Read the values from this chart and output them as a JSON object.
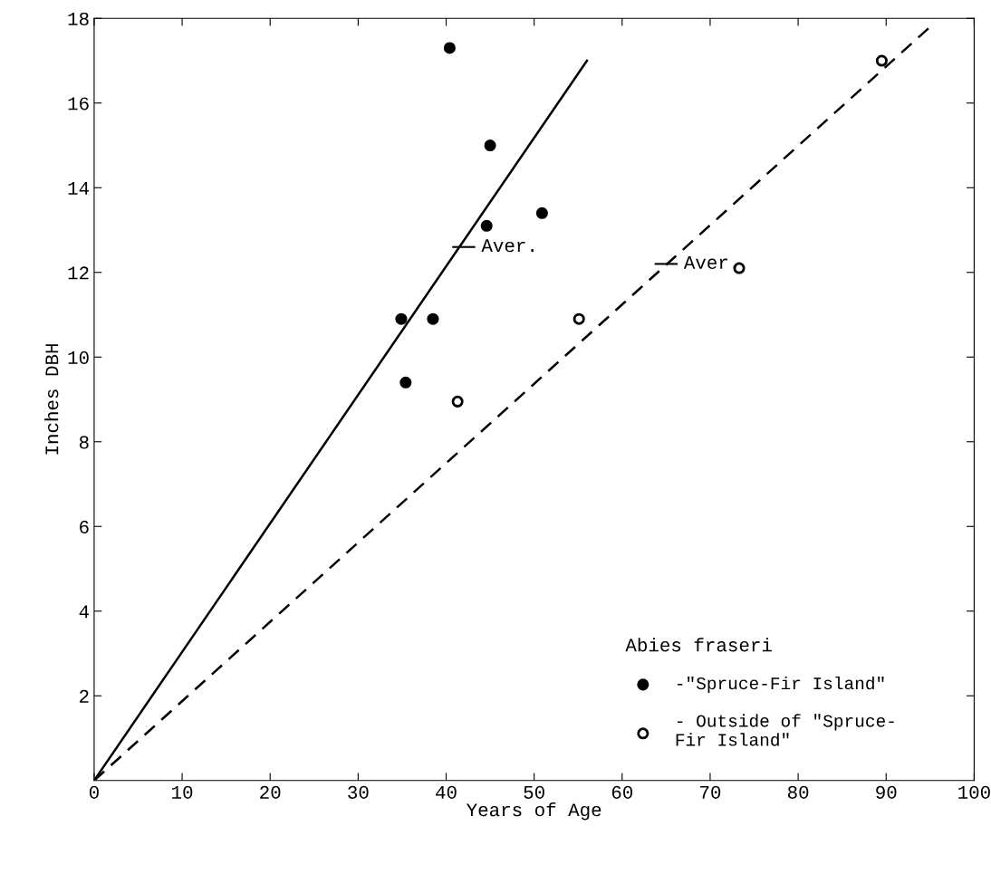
{
  "chart_data": {
    "type": "scatter",
    "xlabel": "Years of Age",
    "ylabel": "Inches DBH",
    "xlim": [
      0,
      100
    ],
    "ylim": [
      0,
      18
    ],
    "xticks": [
      0,
      10,
      20,
      30,
      40,
      50,
      60,
      70,
      80,
      90,
      100
    ],
    "yticks": [
      2,
      4,
      6,
      8,
      10,
      12,
      14,
      16,
      18
    ],
    "grid": false,
    "legend": "bottom right",
    "legend_title": "Abies fraseri",
    "series": [
      {
        "name": "-\"Spruce-Fir Island\"",
        "color": "#000000",
        "marker": "circle",
        "x": [
          40.4,
          45,
          50.9,
          44.6,
          34.9,
          38.5,
          35.4
        ],
        "values": [
          17.3,
          15,
          13.4,
          13.1,
          10.9,
          10.9,
          9.4
        ]
      },
      {
        "name": "- Outside of \"Spruce-\nFir Island\"",
        "color": "#ffffff",
        "marker": "circle",
        "x": [
          41.3,
          55.1,
          73.3,
          89.5
        ],
        "values": [
          8.95,
          10.9,
          12.1,
          17
        ]
      },
      {
        "type": "line",
        "color": "#000000",
        "line_style": "solid",
        "x": [
          0,
          56
        ],
        "values": [
          0,
          17
        ]
      },
      {
        "type": "line",
        "color": "#000000",
        "line_style": "dashed",
        "x": [
          0,
          95
        ],
        "values": [
          0,
          17.8
        ]
      }
    ],
    "annotations": [
      {
        "text": "Aver.",
        "x": 42,
        "y": 12.6
      },
      {
        "text": "Aver.",
        "x": 65,
        "y": 12.2
      }
    ]
  }
}
